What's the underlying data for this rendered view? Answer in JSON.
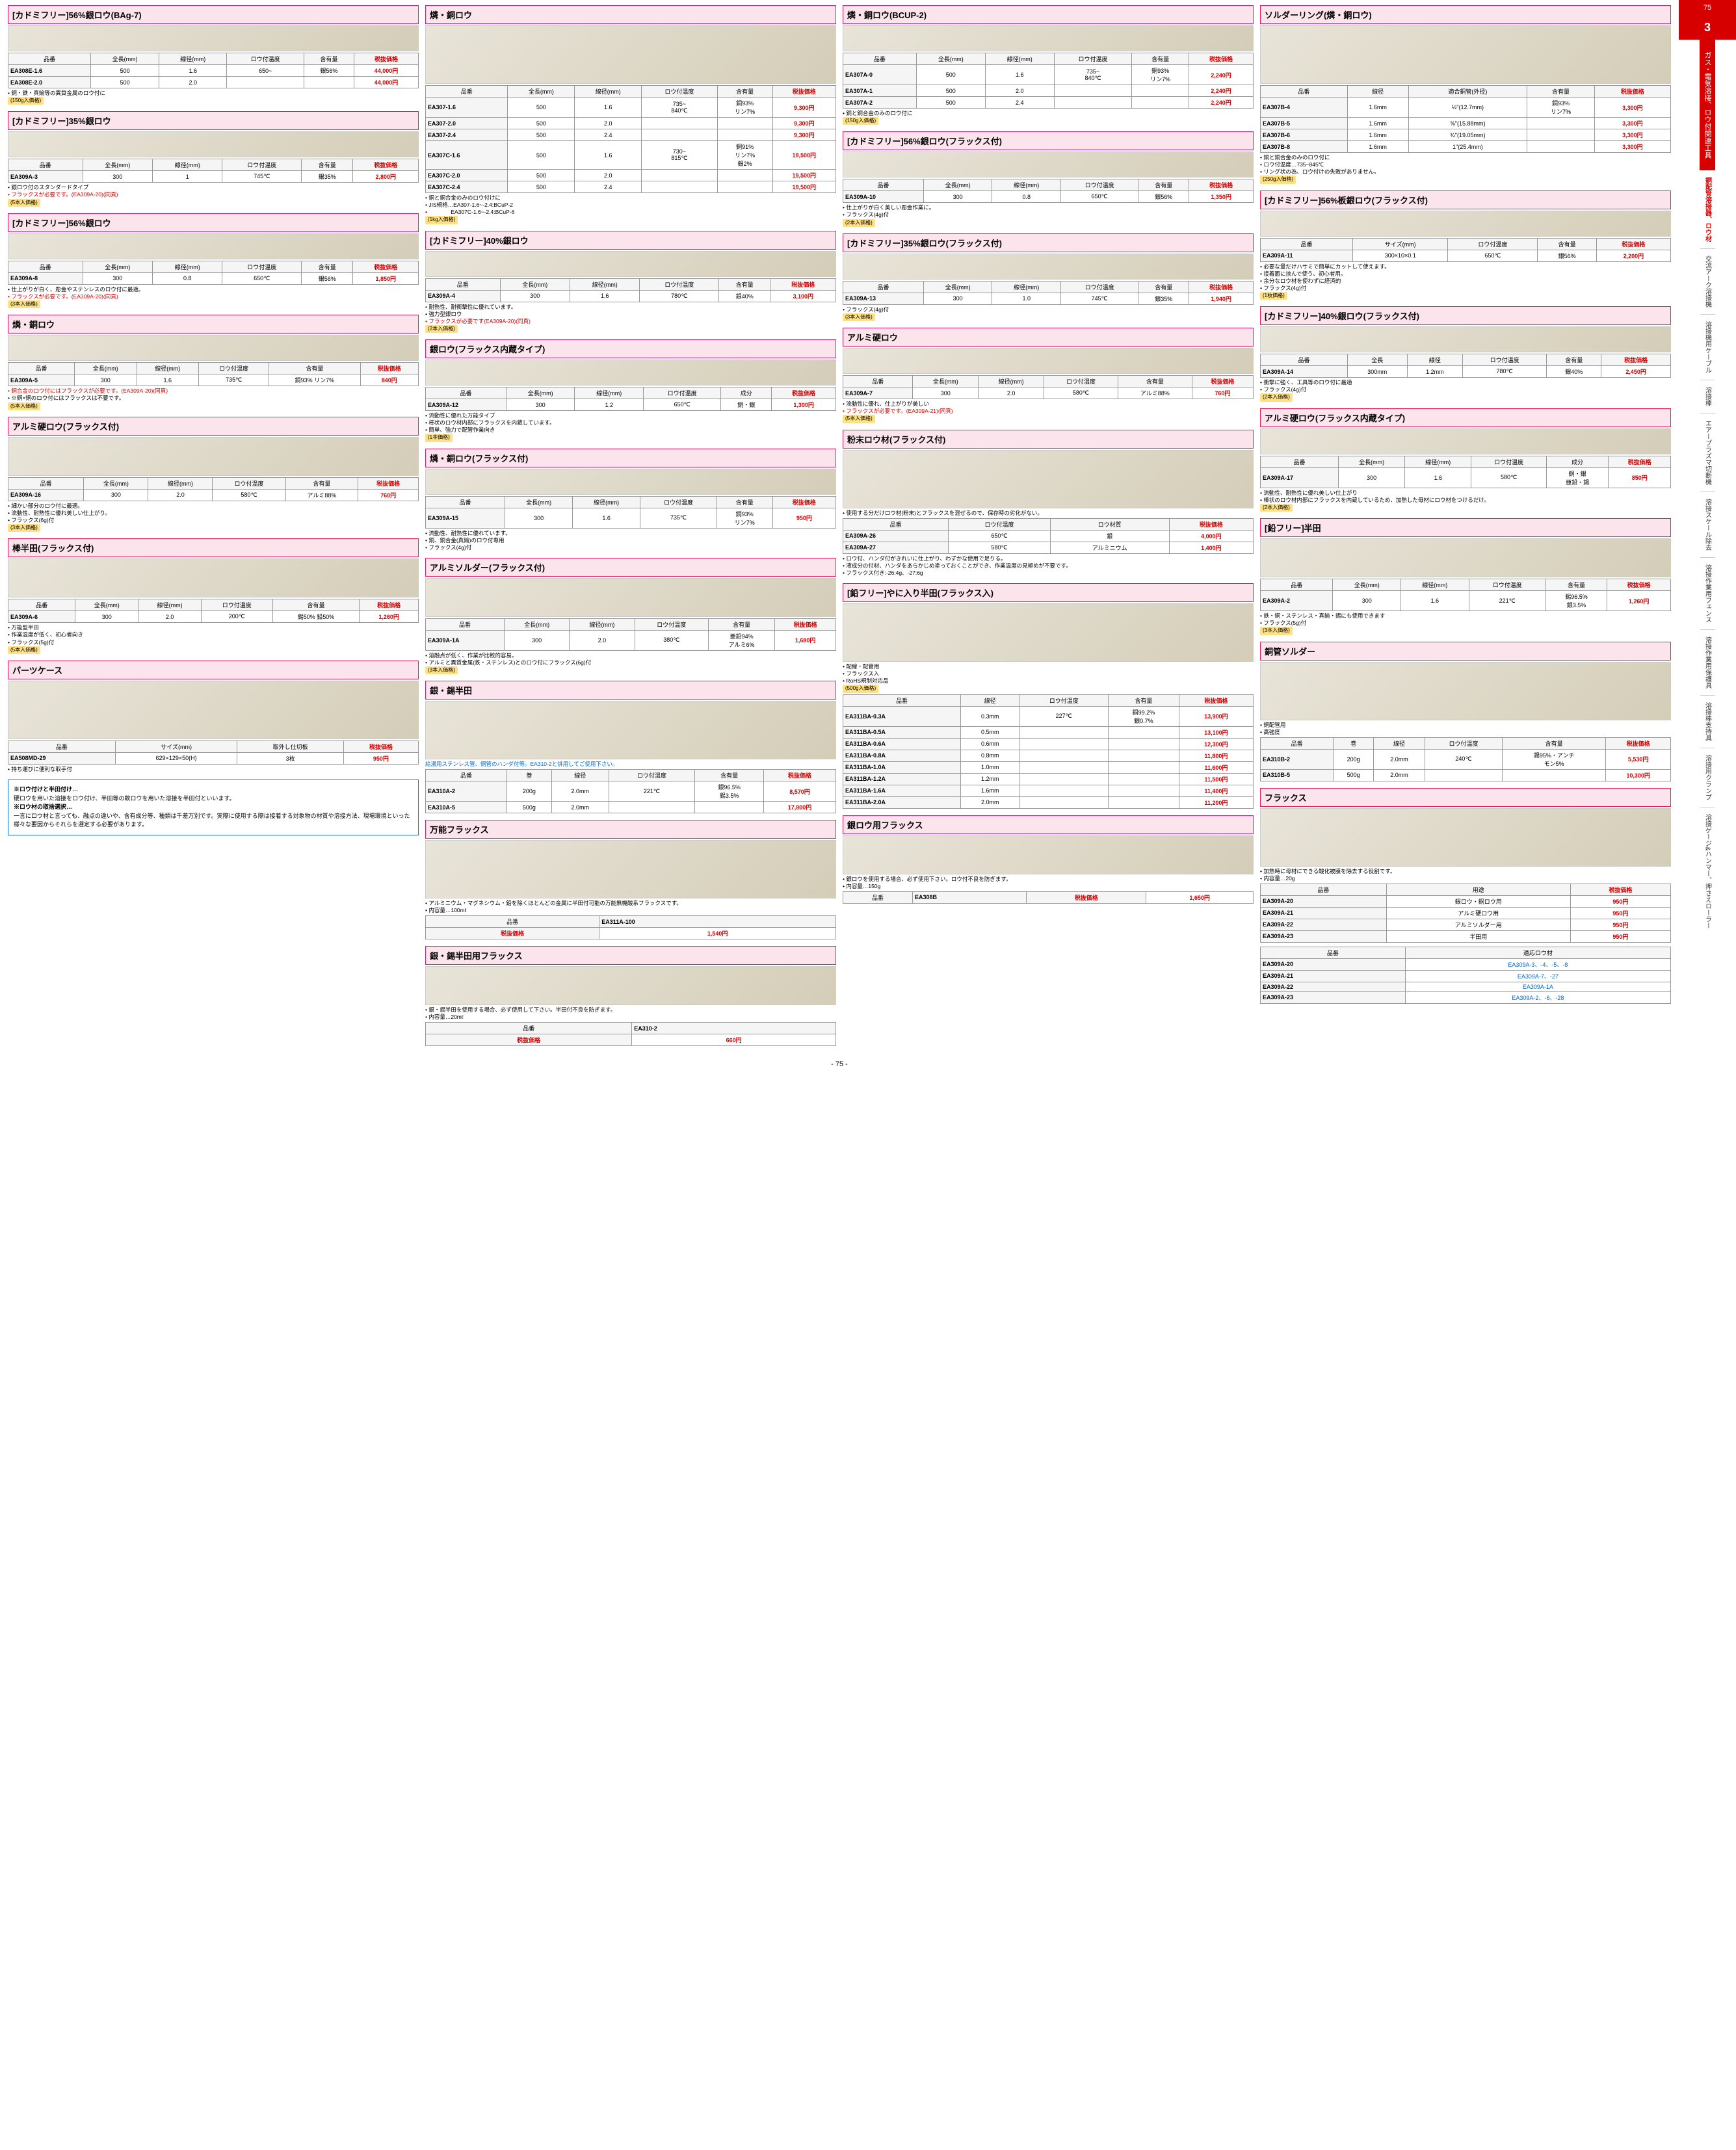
{
  "page_number": "75",
  "chapter_number": "3",
  "footer_page": "- 75 -",
  "sidebar_main_cat": "ガス・電気溶接、ロウ付関連工具",
  "sidebar_sub_cat": "銅配管溶接器、ロウ材",
  "sidebar_items": [
    "交流アーク溶接機",
    "溶接機用ケーブル",
    "溶接棒",
    "エアープラズマ切断機",
    "溶接スケール除去",
    "溶接作業用フェンス",
    "溶接作業用保護具",
    "溶接棒支持具",
    "溶接用クランプ",
    "溶接ゲージ&ハンマー、押さえローラー"
  ],
  "c1s1": {
    "title": "[カドミフリー]56%銀ロウ(BAg-7)",
    "headers": [
      "品番",
      "全長(mm)",
      "線径(mm)",
      "ロウ付温度",
      "含有量",
      "税抜価格"
    ],
    "rows": [
      [
        "EA308E-1.6",
        "500",
        "1.6",
        "650~",
        "銀56%",
        "44,000円"
      ],
      [
        "EA308E-2.0",
        "500",
        "2.0",
        "",
        "",
        "44,000円"
      ]
    ],
    "notes": [
      "銅・鉄・真鍮等の異質金属のロウ付に"
    ],
    "badge": "(150g入価格)"
  },
  "c1s2": {
    "title": "[カドミフリー]35%銀ロウ",
    "headers": [
      "品番",
      "全長(mm)",
      "線径(mm)",
      "ロウ付温度",
      "含有量",
      "税抜価格"
    ],
    "rows": [
      [
        "EA309A-3",
        "300",
        "1",
        "745℃",
        "銀35%",
        "2,800円"
      ]
    ],
    "notes": [
      "銀ロウ付のスタンダードタイプ",
      "フラックスが必要です。(EA309A-20)(同頁)"
    ],
    "badge": "(5本入価格)"
  },
  "c1s3": {
    "title": "[カドミフリー]56%銀ロウ",
    "headers": [
      "品番",
      "全長(mm)",
      "線径(mm)",
      "ロウ付温度",
      "含有量",
      "税抜価格"
    ],
    "rows": [
      [
        "EA309A-8",
        "300",
        "0.8",
        "650℃",
        "銀56%",
        "1,850円"
      ]
    ],
    "notes": [
      "仕上がりが白く、彫金やステンレスのロウ付に最適。",
      "フラックスが必要です。(EA309A-20)(同頁)"
    ],
    "badge": "(3本入価格)"
  },
  "c1s4": {
    "title": "燐・銅ロウ",
    "headers": [
      "品番",
      "全長(mm)",
      "線径(mm)",
      "ロウ付温度",
      "含有量",
      "税抜価格"
    ],
    "rows": [
      [
        "EA309A-5",
        "300",
        "1.6",
        "735℃",
        "銅93% リン7%",
        "840円"
      ]
    ],
    "notes": [
      "銅合金のロウ付にはフラックスが必要です。(EA309A-20)(同頁)",
      "※銅×銅のロウ付にはフラックスは不要です。"
    ],
    "badge": "(5本入価格)"
  },
  "c1s5": {
    "title": "アルミ硬ロウ(フラックス付)",
    "headers": [
      "品番",
      "全長(mm)",
      "線径(mm)",
      "ロウ付温度",
      "含有量",
      "税抜価格"
    ],
    "rows": [
      [
        "EA309A-16",
        "300",
        "2.0",
        "580℃",
        "アルミ88%",
        "760円"
      ]
    ],
    "notes": [
      "細かい部分のロウ付に最適。",
      "流動性、耐熱性に優れ美しい仕上がり。",
      "フラックス(6g)付"
    ],
    "badge": "(3本入価格)"
  },
  "c1s6": {
    "title": "棒半田(フラックス付)",
    "headers": [
      "品番",
      "全長(mm)",
      "線径(mm)",
      "ロウ付温度",
      "含有量",
      "税抜価格"
    ],
    "rows": [
      [
        "EA309A-6",
        "300",
        "2.0",
        "200℃",
        "錫50% 鉛50%",
        "1,260円"
      ]
    ],
    "notes": [
      "万能型半田",
      "作業温度が低く、初心者向き",
      "フラックス(5g)付"
    ],
    "badge": "(5本入価格)"
  },
  "c1s7": {
    "title": "パーツケース",
    "extra": "材質… ポリプロピレン",
    "headers": [
      "品番",
      "サイズ(mm)",
      "取外し仕切板",
      "税抜価格"
    ],
    "rows": [
      [
        "EA508MD-29",
        "629×129×50(H)",
        "3枚",
        "950円"
      ]
    ],
    "notes": [
      "持ち運びに便利な取手付"
    ]
  },
  "c1_infobox": {
    "h1": "※ロウ付けと半田付け…",
    "t1": "硬ロウを用いた溶接をロウ付け、半田等の軟ロウを用いた溶接を半田付といいます。",
    "h2": "※ロウ材の取捨選択…",
    "t2": "一言にロウ材と言っても、融点の違いや、含有成分等、種類は千差万別です。実際に使用する際は接着する対象物の材質や溶接方法、現場環境といった様々な要因からそれらを選定する必要があります。"
  },
  "c2s1": {
    "title": "燐・銅ロウ",
    "headers": [
      "品番",
      "全長(mm)",
      "線径(mm)",
      "ロウ付温度",
      "含有量",
      "税抜価格"
    ],
    "rows": [
      [
        "EA307-1.6",
        "500",
        "1.6",
        "735~\n840℃",
        "銅93%\nリン7%",
        "9,300円"
      ],
      [
        "EA307-2.0",
        "500",
        "2.0",
        "",
        "",
        "9,300円"
      ],
      [
        "EA307-2.4",
        "500",
        "2.4",
        "",
        "",
        "9,300円"
      ],
      [
        "EA307C-1.6",
        "500",
        "1.6",
        "730~\n815℃",
        "銅91%\nリン7%\n銀2%",
        "19,500円"
      ],
      [
        "EA307C-2.0",
        "500",
        "2.0",
        "",
        "",
        "19,500円"
      ],
      [
        "EA307C-2.4",
        "500",
        "2.4",
        "",
        "",
        "19,500円"
      ]
    ],
    "notes": [
      "銅と銅合金のみのロウ付けに",
      "JIS規格…EA307-1.6~-2.4:BCuP-2",
      "　　　　EA307C-1.6~-2.4:BCuP-6"
    ],
    "badge": "(1kg入価格)"
  },
  "c2s2": {
    "title": "[カドミフリー]40%銀ロウ",
    "headers": [
      "品番",
      "全長(mm)",
      "線径(mm)",
      "ロウ付温度",
      "含有量",
      "税抜価格"
    ],
    "rows": [
      [
        "EA309A-4",
        "300",
        "1.6",
        "780℃",
        "銀40%",
        "3,100円"
      ]
    ],
    "notes": [
      "耐熱性、耐衝撃性に優れています。",
      "強力型銀ロウ",
      "フラックスが必要です(EA309A-20)(同頁)"
    ],
    "badge": "(2本入価格)"
  },
  "c2s3": {
    "title": "銀ロウ(フラックス内蔵タイプ)",
    "headers": [
      "品番",
      "全長(mm)",
      "線径(mm)",
      "ロウ付温度",
      "成分",
      "税抜価格"
    ],
    "rows": [
      [
        "EA309A-12",
        "300",
        "1.2",
        "650℃",
        "銅・銀",
        "1,300円"
      ]
    ],
    "notes": [
      "流動性に優れた万能タイプ",
      "棒状のロウ材内部にフラックスを内蔵しています。",
      "簡単、強力で配管作業向き"
    ],
    "badge": "(1本価格)"
  },
  "c2s4": {
    "title": "燐・銅ロウ(フラックス付)",
    "headers": [
      "品番",
      "全長(mm)",
      "線径(mm)",
      "ロウ付温度",
      "含有量",
      "税抜価格"
    ],
    "rows": [
      [
        "EA309A-15",
        "300",
        "1.6",
        "735℃",
        "銅93%\nリン7%",
        "950円"
      ]
    ],
    "notes": [
      "流動性、耐熱性に優れています。",
      "銅、銅合金(真鍮)のロウ付専用",
      "フラックス(4g)付"
    ]
  },
  "c2s5": {
    "title": "アルミソルダー(フラックス付)",
    "headers": [
      "品番",
      "全長(mm)",
      "線径(mm)",
      "ロウ付温度",
      "含有量",
      "税抜価格"
    ],
    "rows": [
      [
        "EA309A-1A",
        "300",
        "2.0",
        "380℃",
        "亜鉛94%\nアルミ6%",
        "1,680円"
      ]
    ],
    "notes": [
      "溶融点が低く、作業が比較的容易。",
      "アルミと異質金属(鉄・ステンレス)とのロウ付にフラックス(6g)付"
    ],
    "badge": "(3本入価格)"
  },
  "c2s6": {
    "title": "銀・錫半田",
    "note_blue": "給湯用ステンレス管、銅管のハンダ付等。EA310-2と併用してご使用下さい。",
    "headers": [
      "品番",
      "巻",
      "線径",
      "ロウ付温度",
      "含有量",
      "税抜価格"
    ],
    "rows": [
      [
        "EA310A-2",
        "200g",
        "2.0mm",
        "221℃",
        "銀96.5%\n錫3.5%",
        "8,570円"
      ],
      [
        "EA310A-5",
        "500g",
        "2.0mm",
        "",
        "",
        "17,800円"
      ]
    ]
  },
  "c2s7": {
    "title": "万能フラックス",
    "notes": [
      "アルミニウム・マグネシウム・鉛を除くほとんどの金属に半田付可能の万能無機酸系フラックスです。",
      "内容量…100mℓ"
    ],
    "pn_row": [
      "品番",
      "EA311A-100"
    ],
    "price_row": [
      "税抜価格",
      "1,540円"
    ]
  },
  "c2s8": {
    "title": "銀・錫半田用フラックス",
    "notes": [
      "銀・錫半田を使用する場合、必ず使用して下さい。半田付不良を防ぎます。",
      "内容量…20mℓ"
    ],
    "pn_row": [
      "品番",
      "EA310-2"
    ],
    "price_row": [
      "税抜価格",
      "660円"
    ]
  },
  "c3s1": {
    "title": "燐・銅ロウ(BCUP-2)",
    "headers": [
      "品番",
      "全長(mm)",
      "線径(mm)",
      "ロウ付温度",
      "含有量",
      "税抜価格"
    ],
    "rows": [
      [
        "EA307A-0",
        "500",
        "1.6",
        "735~\n840℃",
        "銅93%\nリン7%",
        "2,240円"
      ],
      [
        "EA307A-1",
        "500",
        "2.0",
        "",
        "",
        "2,240円"
      ],
      [
        "EA307A-2",
        "500",
        "2.4",
        "",
        "",
        "2,240円"
      ]
    ],
    "notes": [
      "銅と銅合金のみのロウ付に"
    ],
    "badge": "(150g入価格)"
  },
  "c3s2": {
    "title": "[カドミフリー]56%銀ロウ(フラックス付)",
    "headers": [
      "品番",
      "全長(mm)",
      "線径(mm)",
      "ロウ付温度",
      "含有量",
      "税抜価格"
    ],
    "rows": [
      [
        "EA309A-10",
        "300",
        "0.8",
        "650℃",
        "銀56%",
        "1,350円"
      ]
    ],
    "notes": [
      "仕上がりが白く美しい彫金作業に。",
      "フラックス(4g)付"
    ],
    "badge": "(2本入価格)"
  },
  "c3s3": {
    "title": "[カドミフリー]35%銀ロウ(フラックス付)",
    "headers": [
      "品番",
      "全長(mm)",
      "線径(mm)",
      "ロウ付温度",
      "含有量",
      "税抜価格"
    ],
    "rows": [
      [
        "EA309A-13",
        "300",
        "1.0",
        "745℃",
        "銀35%",
        "1,940円"
      ]
    ],
    "notes": [
      "フラックス(4g)付"
    ],
    "badge": "(3本入価格)"
  },
  "c3s4": {
    "title": "アルミ硬ロウ",
    "headers": [
      "品番",
      "全長(mm)",
      "線径(mm)",
      "ロウ付温度",
      "含有量",
      "税抜価格"
    ],
    "rows": [
      [
        "EA309A-7",
        "300",
        "2.0",
        "580℃",
        "アルミ88%",
        "760円"
      ]
    ],
    "notes": [
      "流動性に優れ、仕上がりが美しい",
      "フラックスが必要です。(EA309A-21)(同頁)"
    ],
    "badge": "(5本入価格)"
  },
  "c3s5": {
    "title": "粉末ロウ材(フラックス付)",
    "notes": [
      "使用する分だけロウ材(粉末)とフラックスを混ぜるので、保存時の劣化がない。"
    ],
    "headers": [
      "品番",
      "ロウ付温度",
      "ロウ材質",
      "税抜価格"
    ],
    "rows": [
      [
        "EA309A-26",
        "650℃",
        "銀",
        "4,000円"
      ],
      [
        "EA309A-27",
        "580℃",
        "アルミニウム",
        "1,400円"
      ]
    ],
    "notes2": [
      "ロウ付、ハンダ付がきれいに仕上がり、わずかな使用で足りる。",
      "液成分の付材、ハンダをあらかじめ塗っておくことができ、作業温度の見極めが不要です。",
      "フラックス付き:-26:4g、-27:6g"
    ]
  },
  "c3s6": {
    "title": "[鉛フリー]やに入り半田(フラックス入)",
    "notes": [
      "配線・配管用",
      "フラックス入",
      "RoHS規制対応品"
    ],
    "badge": "(500g入価格)",
    "headers": [
      "品番",
      "線径",
      "ロウ付温度",
      "含有量",
      "税抜価格"
    ],
    "rows": [
      [
        "EA311BA-0.3A",
        "0.3mm",
        "227℃",
        "銅99.2%\n銀0.7%",
        "13,900円"
      ],
      [
        "EA311BA-0.5A",
        "0.5mm",
        "",
        "",
        "13,100円"
      ],
      [
        "EA311BA-0.6A",
        "0.6mm",
        "",
        "",
        "12,300円"
      ],
      [
        "EA311BA-0.8A",
        "0.8mm",
        "",
        "",
        "11,800円"
      ],
      [
        "EA311BA-1.0A",
        "1.0mm",
        "",
        "",
        "11,600円"
      ],
      [
        "EA311BA-1.2A",
        "1.2mm",
        "",
        "",
        "11,500円"
      ],
      [
        "EA311BA-1.6A",
        "1.6mm",
        "",
        "",
        "11,400円"
      ],
      [
        "EA311BA-2.0A",
        "2.0mm",
        "",
        "",
        "11,200円"
      ]
    ]
  },
  "c3s7": {
    "title": "銀ロウ用フラックス",
    "notes": [
      "銀ロウを使用する場合、必ず使用下さい。ロウ付不良を防ぎます。",
      "内容量…150g"
    ],
    "pn": "EA308B",
    "price": "1,650円"
  },
  "c4s1": {
    "title": "ソルダーリング(燐・銅ロウ)",
    "headers": [
      "品番",
      "線径",
      "適合銅管(外径)",
      "含有量",
      "税抜価格"
    ],
    "rows": [
      [
        "EA307B-4",
        "1.6mm",
        "½\"(12.7mm)",
        "銅93%\nリン7%",
        "3,300円"
      ],
      [
        "EA307B-5",
        "1.6mm",
        "⅝\"(15.88mm)",
        "",
        "3,300円"
      ],
      [
        "EA307B-6",
        "1.6mm",
        "¾\"(19.05mm)",
        "",
        "3,300円"
      ],
      [
        "EA307B-8",
        "1.6mm",
        "1\"(25.4mm)",
        "",
        "3,300円"
      ]
    ],
    "notes": [
      "銅と銅合金のみのロウ付に",
      "ロウ付温度…735~845℃",
      "リング状の為、ロウ付けの失敗がありません。"
    ],
    "badge": "(250g入価格)"
  },
  "c4s2": {
    "title": "[カドミフリー]56%板銀ロウ(フラックス付)",
    "headers": [
      "品番",
      "サイズ(mm)",
      "ロウ付温度",
      "含有量",
      "税抜価格"
    ],
    "rows": [
      [
        "EA309A-11",
        "300×10×0.1",
        "650℃",
        "銀56%",
        "2,200円"
      ]
    ],
    "notes": [
      "必要な量だけハサミで簡単にカットして使えます。",
      "接着面に挟んで使う、初心者用。",
      "余分なロウ材を使わずに経済的",
      "フラックス(4g)付"
    ],
    "badge": "(1枚価格)"
  },
  "c4s3": {
    "title": "[カドミフリー]40%銀ロウ(フラックス付)",
    "headers": [
      "品番",
      "全長",
      "線径",
      "ロウ付温度",
      "含有量",
      "税抜価格"
    ],
    "rows": [
      [
        "EA309A-14",
        "300mm",
        "1.2mm",
        "780℃",
        "銀40%",
        "2,450円"
      ]
    ],
    "notes": [
      "衝撃に強く、工具等のロウ付に最適",
      "フラックス(4g)付"
    ],
    "badge": "(2本入価格)"
  },
  "c4s4": {
    "title": "アルミ硬ロウ(フラックス内蔵タイプ)",
    "headers": [
      "品番",
      "全長(mm)",
      "線径(mm)",
      "ロウ付温度",
      "成分",
      "税抜価格"
    ],
    "rows": [
      [
        "EA309A-17",
        "300",
        "1.6",
        "580℃",
        "銅・銀\n亜鉛・錫",
        "850円"
      ]
    ],
    "notes": [
      "流動性、耐熱性に優れ美しい仕上がり",
      "棒状のロウ材内部にフラックスを内蔵しているため、加熱した母材にロウ材をつけるだけ。"
    ],
    "badge": "(2本入価格)"
  },
  "c4s5": {
    "title": "[鉛フリー]半田",
    "headers": [
      "品番",
      "全長(mm)",
      "線径(mm)",
      "ロウ付温度",
      "含有量",
      "税抜価格"
    ],
    "rows": [
      [
        "EA309A-2",
        "300",
        "1.6",
        "221℃",
        "錫96.5%\n銀3.5%",
        "1,260円"
      ]
    ],
    "notes": [
      "鉄・銅・ステンレス・真鍮・錫にも使用できます",
      "フラックス(5g)付"
    ],
    "badge": "(3本入価格)"
  },
  "c4s6": {
    "title": "銅管ソルダー",
    "notes": [
      "銅配管用",
      "高強度"
    ],
    "headers": [
      "品番",
      "巻",
      "線径",
      "ロウ付温度",
      "含有量",
      "税抜価格"
    ],
    "rows": [
      [
        "EA310B-2",
        "200g",
        "2.0mm",
        "240℃",
        "錫95%・アンチ\nモン5%",
        "5,530円"
      ],
      [
        "EA310B-5",
        "500g",
        "2.0mm",
        "",
        "",
        "10,300円"
      ]
    ]
  },
  "c4s7": {
    "title": "フラックス",
    "notes": [
      "加熱時に母材にできる酸化被膜を除去する役割です。",
      "内容量…20g"
    ],
    "headers": [
      "品番",
      "用途",
      "税抜価格"
    ],
    "rows": [
      [
        "EA309A-20",
        "銀ロウ・銅ロウ用",
        "950円"
      ],
      [
        "EA309A-21",
        "アルミ硬ロウ用",
        "950円"
      ],
      [
        "EA309A-22",
        "アルミソルダー用",
        "950円"
      ],
      [
        "EA309A-23",
        "半田用",
        "950円"
      ]
    ],
    "compat_h": [
      "品番",
      "適応ロウ材"
    ],
    "compat": [
      [
        "EA309A-20",
        "EA309A-3、-4、-5、-8"
      ],
      [
        "EA309A-21",
        "EA309A-7、-27"
      ],
      [
        "EA309A-22",
        "EA309A-1A"
      ],
      [
        "EA309A-23",
        "EA309A-2、-6、-28"
      ]
    ]
  }
}
